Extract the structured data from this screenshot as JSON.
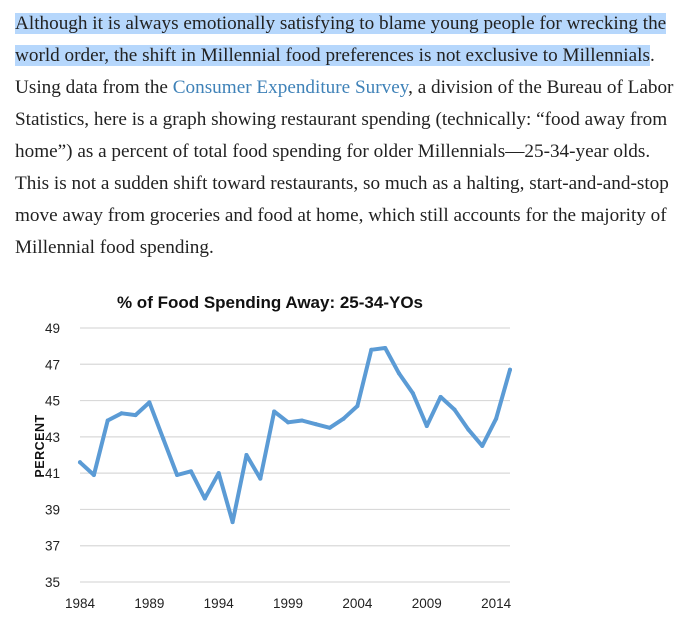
{
  "article": {
    "highlighted_text": "Although it is always emotionally satisfying to blame young people for wrecking the world order, the shift in Millennial food preferences is not exclusive to Millennials",
    "after_highlight": ". Using data from the ",
    "link_text": "Consumer Expenditure Survey",
    "rest_text": ", a division of the Bureau of Labor Statistics, here is a graph showing restaurant spending (technically: “food away from home”) as a percent of total food spending for older Millennials—25-34-year olds. This is not a sudden shift toward restaurants, so much as a halting, start-and-and-stop move away from groceries and food at home, which still accounts for the majority of Millennial food spending."
  },
  "colors": {
    "highlight": "#b6d7fc",
    "link": "#3f82b8",
    "line": "#5b9bd5",
    "grid": "#d9d9d9"
  },
  "chart_data": {
    "type": "line",
    "title": "% of Food Spending Away: 25-34-YOs",
    "xlabel": "",
    "ylabel": "PERCENT",
    "ylim": [
      35,
      49
    ],
    "xlim": [
      1984,
      2015
    ],
    "yticks": [
      "49",
      "47",
      "45",
      "43",
      "41",
      "39",
      "37",
      "35"
    ],
    "xticks": [
      "1984",
      "1989",
      "1994",
      "1999",
      "2004",
      "2009",
      "2014"
    ],
    "grid": true,
    "legend": "none",
    "series": [
      {
        "x": [
          1984,
          1985,
          1986,
          1987,
          1988,
          1989,
          1990,
          1991,
          1992,
          1993,
          1994,
          1995,
          1996,
          1997,
          1998,
          1999,
          2000,
          2001,
          2002,
          2003,
          2004,
          2005,
          2006,
          2007,
          2008,
          2009,
          2010,
          2011,
          2012,
          2013,
          2014,
          2015
        ],
        "values": [
          41.6,
          40.9,
          43.9,
          44.3,
          44.2,
          44.9,
          42.9,
          40.9,
          41.1,
          39.6,
          41.0,
          38.3,
          42.0,
          40.7,
          44.4,
          43.8,
          43.9,
          43.7,
          43.5,
          44.0,
          44.7,
          47.8,
          47.9,
          46.5,
          45.4,
          43.6,
          45.2,
          44.5,
          43.4,
          42.5,
          44.0,
          46.7
        ]
      }
    ]
  }
}
